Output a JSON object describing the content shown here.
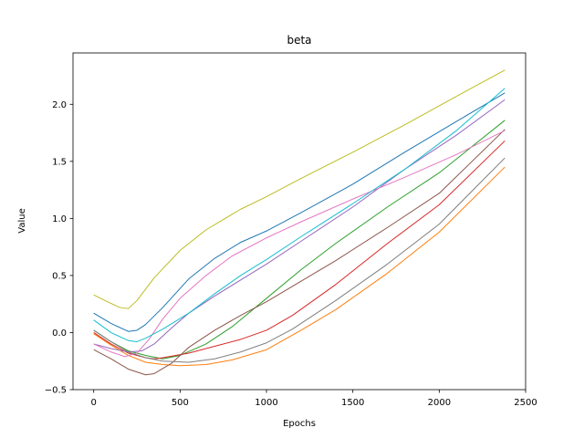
{
  "chart_data": {
    "type": "line",
    "title": "beta",
    "xlabel": "Epochs",
    "ylabel": "Value",
    "xlim": [
      -120,
      2500
    ],
    "ylim": [
      -0.5,
      2.45
    ],
    "xticks": [
      0,
      500,
      1000,
      1500,
      2000,
      2500
    ],
    "yticks": [
      -0.5,
      0.0,
      0.5,
      1.0,
      1.5,
      2.0
    ],
    "xtick_labels": [
      "0",
      "500",
      "1000",
      "1500",
      "2000",
      "2500"
    ],
    "ytick_labels": [
      "−0.5",
      "0.0",
      "0.5",
      "1.0",
      "1.5",
      "2.0"
    ],
    "grid": false,
    "legend": "none",
    "series": [
      {
        "color": "#1f77b4",
        "x": [
          0,
          100,
          200,
          250,
          300,
          400,
          550,
          700,
          850,
          1000,
          1200,
          1500,
          1800,
          2100,
          2380
        ],
        "y": [
          0.17,
          0.08,
          0.01,
          0.02,
          0.07,
          0.22,
          0.47,
          0.65,
          0.79,
          0.89,
          1.05,
          1.3,
          1.58,
          1.85,
          2.1
        ]
      },
      {
        "color": "#ff7f0e",
        "x": [
          0,
          100,
          200,
          300,
          400,
          500,
          650,
          800,
          1000,
          1200,
          1400,
          1700,
          2000,
          2380
        ],
        "y": [
          -0.01,
          -0.11,
          -0.2,
          -0.26,
          -0.28,
          -0.29,
          -0.28,
          -0.24,
          -0.15,
          0.02,
          0.2,
          0.52,
          0.88,
          1.45
        ]
      },
      {
        "color": "#2ca02c",
        "x": [
          0,
          100,
          200,
          300,
          400,
          500,
          650,
          800,
          1000,
          1200,
          1400,
          1700,
          2000,
          2380
        ],
        "y": [
          0.02,
          -0.08,
          -0.16,
          -0.2,
          -0.23,
          -0.2,
          -0.1,
          0.05,
          0.3,
          0.55,
          0.78,
          1.1,
          1.4,
          1.86
        ]
      },
      {
        "color": "#d62728",
        "x": [
          0,
          100,
          200,
          300,
          350,
          400,
          550,
          700,
          850,
          1000,
          1150,
          1400,
          1700,
          2000,
          2380
        ],
        "y": [
          0.0,
          -0.1,
          -0.18,
          -0.22,
          -0.23,
          -0.22,
          -0.18,
          -0.12,
          -0.06,
          0.02,
          0.15,
          0.42,
          0.78,
          1.12,
          1.68
        ]
      },
      {
        "color": "#9467bd",
        "x": [
          0,
          100,
          200,
          280,
          350,
          450,
          550,
          700,
          850,
          1000,
          1200,
          1500,
          1800,
          2100,
          2380
        ],
        "y": [
          -0.1,
          -0.14,
          -0.17,
          -0.16,
          -0.1,
          0.04,
          0.17,
          0.32,
          0.46,
          0.6,
          0.8,
          1.1,
          1.43,
          1.73,
          2.04
        ]
      },
      {
        "color": "#8c564b",
        "x": [
          0,
          100,
          200,
          300,
          350,
          450,
          550,
          700,
          850,
          1000,
          1200,
          1400,
          1700,
          2000,
          2380
        ],
        "y": [
          -0.15,
          -0.23,
          -0.32,
          -0.37,
          -0.36,
          -0.27,
          -0.13,
          0.02,
          0.15,
          0.27,
          0.45,
          0.63,
          0.92,
          1.22,
          1.78
        ]
      },
      {
        "color": "#e377c2",
        "x": [
          0,
          100,
          180,
          250,
          320,
          400,
          500,
          650,
          800,
          1000,
          1200,
          1500,
          1800,
          2100,
          2380
        ],
        "y": [
          -0.1,
          -0.17,
          -0.21,
          -0.18,
          -0.06,
          0.12,
          0.3,
          0.5,
          0.67,
          0.83,
          0.97,
          1.17,
          1.36,
          1.56,
          1.77
        ]
      },
      {
        "color": "#7f7f7f",
        "x": [
          0,
          100,
          200,
          300,
          400,
          550,
          700,
          850,
          1000,
          1150,
          1400,
          1700,
          2000,
          2380
        ],
        "y": [
          0.02,
          -0.08,
          -0.17,
          -0.22,
          -0.25,
          -0.26,
          -0.23,
          -0.17,
          -0.09,
          0.03,
          0.28,
          0.6,
          0.95,
          1.53
        ]
      },
      {
        "color": "#bcbd22",
        "x": [
          0,
          80,
          150,
          200,
          250,
          350,
          500,
          650,
          850,
          1000,
          1200,
          1500,
          1800,
          2100,
          2380
        ],
        "y": [
          0.33,
          0.27,
          0.22,
          0.21,
          0.28,
          0.48,
          0.72,
          0.9,
          1.08,
          1.19,
          1.35,
          1.58,
          1.82,
          2.07,
          2.3
        ]
      },
      {
        "color": "#17becf",
        "x": [
          0,
          100,
          200,
          250,
          300,
          400,
          550,
          700,
          850,
          1000,
          1200,
          1500,
          1800,
          2100,
          2380
        ],
        "y": [
          0.11,
          0.0,
          -0.07,
          -0.08,
          -0.05,
          0.03,
          0.17,
          0.34,
          0.5,
          0.64,
          0.84,
          1.13,
          1.43,
          1.77,
          2.14
        ]
      }
    ]
  }
}
